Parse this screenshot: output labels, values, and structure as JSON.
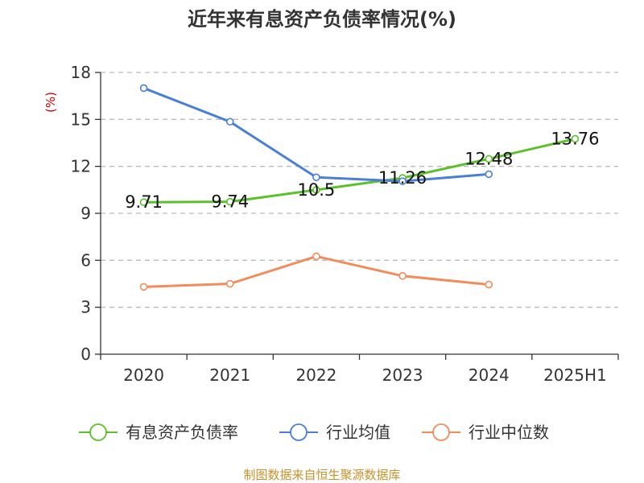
{
  "chart_data": {
    "type": "line",
    "title": "近年来有息资产负债率情况(%)",
    "ylabel": "(%)",
    "xlabel": "",
    "categories": [
      "2020",
      "2021",
      "2022",
      "2023",
      "2024",
      "2025H1"
    ],
    "ylim": [
      0,
      18
    ],
    "yticks": [
      0,
      3,
      6,
      9,
      12,
      15,
      18
    ],
    "grid": true,
    "legend_position": "bottom",
    "series": [
      {
        "name": "有息资产负债率",
        "color": "#5bc12a",
        "values": [
          9.71,
          9.74,
          10.5,
          11.26,
          12.48,
          13.76
        ],
        "labels": [
          "9.71",
          "9.74",
          "10.5",
          "11.26",
          "12.48",
          "13.76"
        ]
      },
      {
        "name": "行业均值",
        "color": "#4a7fd6",
        "values": [
          17.0,
          14.85,
          11.3,
          11.05,
          11.5,
          null
        ]
      },
      {
        "name": "行业中位数",
        "color": "#f28c5a",
        "values": [
          4.3,
          4.5,
          6.25,
          5.0,
          4.45,
          null
        ]
      }
    ]
  },
  "footer": {
    "source": "制图数据来自恒生聚源数据库"
  }
}
